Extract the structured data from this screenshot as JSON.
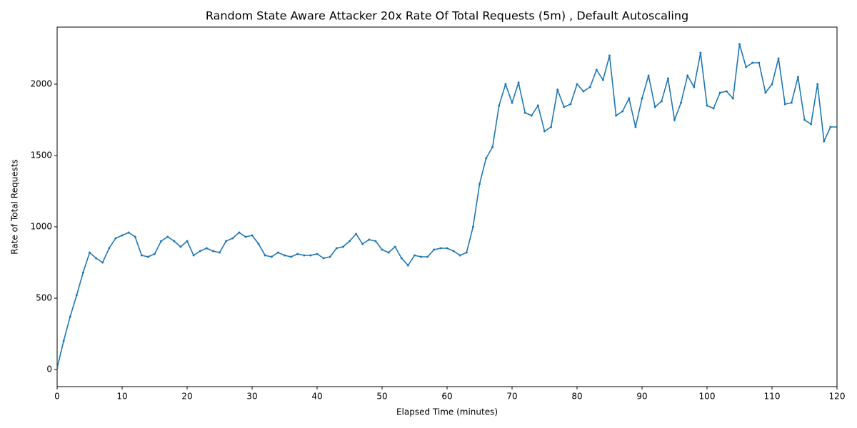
{
  "chart_data": {
    "type": "line",
    "title": "Random State Aware Attacker 20x Rate Of Total Requests (5m) , Default Autoscaling",
    "x_label": "Elapsed Time (minutes)",
    "y_label": "Rate of Total Requests",
    "x": [
      0,
      1,
      2,
      3,
      4,
      5,
      6,
      7,
      8,
      9,
      10,
      11,
      12,
      13,
      14,
      15,
      16,
      17,
      18,
      19,
      20,
      21,
      22,
      23,
      24,
      25,
      26,
      27,
      28,
      29,
      30,
      31,
      32,
      33,
      34,
      35,
      36,
      37,
      38,
      39,
      40,
      41,
      42,
      43,
      44,
      45,
      46,
      47,
      48,
      49,
      50,
      51,
      52,
      53,
      54,
      55,
      56,
      57,
      58,
      59,
      60,
      61,
      62,
      63,
      64,
      65,
      66,
      67,
      68,
      69,
      70,
      71,
      72,
      73,
      74,
      75,
      76,
      77,
      78,
      79,
      80,
      81,
      82,
      83,
      84,
      85,
      86,
      87,
      88,
      89,
      90,
      91,
      92,
      93,
      94,
      95,
      96,
      97,
      98,
      99,
      100,
      101,
      102,
      103,
      104,
      105,
      106,
      107,
      108,
      109,
      110,
      111,
      112,
      113,
      114,
      115,
      116,
      117,
      118,
      119,
      120
    ],
    "series": [
      {
        "name": "Rate of Total Requests",
        "color": "#1f77b4",
        "values": [
          10,
          200,
          370,
          520,
          680,
          820,
          780,
          750,
          850,
          920,
          940,
          960,
          930,
          800,
          790,
          810,
          900,
          930,
          900,
          860,
          900,
          800,
          830,
          850,
          830,
          820,
          900,
          920,
          960,
          930,
          940,
          880,
          800,
          790,
          820,
          800,
          790,
          810,
          800,
          800,
          810,
          780,
          790,
          850,
          860,
          900,
          950,
          880,
          910,
          900,
          840,
          820,
          860,
          780,
          730,
          800,
          790,
          790,
          840,
          850,
          850,
          830,
          800,
          820,
          1000,
          1300,
          1480,
          1560,
          1850,
          2000,
          1870,
          2010,
          1800,
          1780,
          1850,
          1670,
          1700,
          1960,
          1840,
          1860,
          2000,
          1950,
          1980,
          2100,
          2030,
          2200,
          1780,
          1810,
          1900,
          1700,
          1900,
          2060,
          1840,
          1880,
          2040,
          1750,
          1870,
          2060,
          1980,
          2220,
          1850,
          1830,
          1940,
          1950,
          1900,
          2280,
          2120,
          2150,
          2150,
          1940,
          2000,
          2180,
          1860,
          1870,
          2050,
          1750,
          1720,
          2000,
          1600,
          1700,
          1700
        ]
      }
    ],
    "xlim": [
      0,
      120
    ],
    "ylim": [
      -120,
      2400
    ],
    "xticks": [
      0,
      10,
      20,
      30,
      40,
      50,
      60,
      70,
      80,
      90,
      100,
      110,
      120
    ],
    "yticks": [
      0,
      500,
      1000,
      1500,
      2000
    ],
    "grid": false
  }
}
